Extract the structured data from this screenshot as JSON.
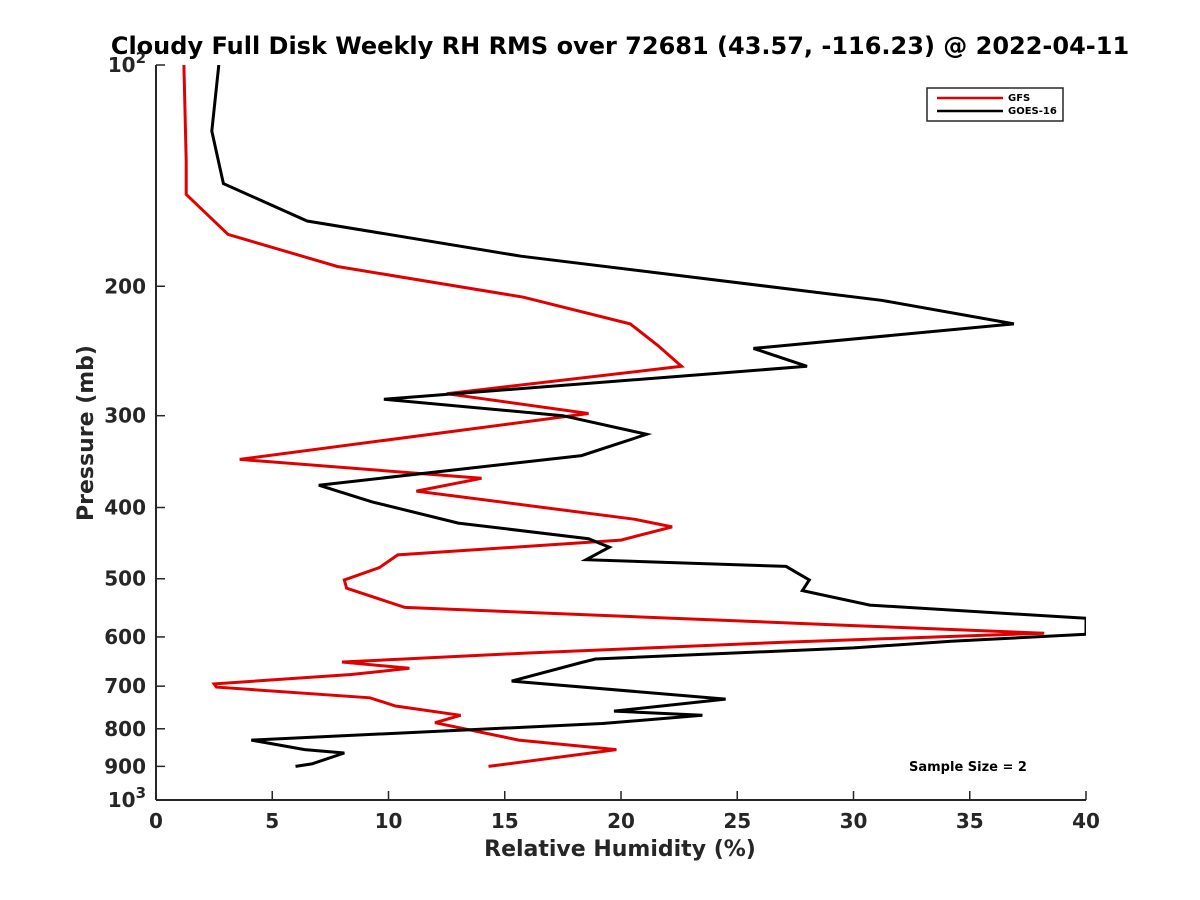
{
  "chart_data": {
    "type": "line",
    "title": "Cloudy Full Disk Weekly RH RMS over 72681 (43.57, -116.23) @ 2022-04-11",
    "xlabel": "Relative Humidity (%)",
    "ylabel": "Pressure (mb)",
    "xlim": [
      0,
      40
    ],
    "ylim": [
      100,
      1000
    ],
    "yscale": "log",
    "y_reversed": true,
    "grid": false,
    "legend_position": "top-right",
    "x_ticks": [
      0,
      5,
      10,
      15,
      20,
      25,
      30,
      35,
      40
    ],
    "y_ticks": [
      {
        "value": 100,
        "base": "10",
        "exp": "2"
      },
      {
        "value": 200,
        "label": "200"
      },
      {
        "value": 300,
        "label": "300"
      },
      {
        "value": 400,
        "label": "400"
      },
      {
        "value": 500,
        "label": "500"
      },
      {
        "value": 600,
        "label": "600"
      },
      {
        "value": 700,
        "label": "700"
      },
      {
        "value": 800,
        "label": "800"
      },
      {
        "value": 900,
        "label": "900"
      },
      {
        "value": 1000,
        "base": "10",
        "exp": "3"
      }
    ],
    "series": [
      {
        "name": "GFS",
        "color": "#e00000",
        "points": [
          [
            1.2,
            100
          ],
          [
            1.3,
            135
          ],
          [
            1.3,
            150
          ],
          [
            3.1,
            170
          ],
          [
            7.8,
            188
          ],
          [
            15.8,
            207
          ],
          [
            20.4,
            225
          ],
          [
            21.6,
            241
          ],
          [
            22.6,
            257
          ],
          [
            12.5,
            280
          ],
          [
            18.6,
            298
          ],
          [
            3.6,
            344
          ],
          [
            14.0,
            365
          ],
          [
            11.2,
            380
          ],
          [
            20.6,
            415
          ],
          [
            22.2,
            425
          ],
          [
            20.0,
            443
          ],
          [
            10.4,
            464
          ],
          [
            9.6,
            483
          ],
          [
            8.1,
            502
          ],
          [
            8.2,
            515
          ],
          [
            10.7,
            547
          ],
          [
            30.0,
            579
          ],
          [
            38.2,
            593
          ],
          [
            27.0,
            610
          ],
          [
            16.0,
            631
          ],
          [
            8.0,
            649
          ],
          [
            10.9,
            662
          ],
          [
            8.4,
            675
          ],
          [
            2.5,
            695
          ],
          [
            2.6,
            702
          ],
          [
            9.2,
            726
          ],
          [
            10.3,
            745
          ],
          [
            13.1,
            767
          ],
          [
            12.0,
            785
          ],
          [
            15.6,
            829
          ],
          [
            19.8,
            854
          ],
          [
            14.3,
            900
          ]
        ]
      },
      {
        "name": "GOES-16",
        "color": "#000000",
        "points": [
          [
            2.7,
            100
          ],
          [
            2.4,
            123
          ],
          [
            2.9,
            145
          ],
          [
            6.5,
            163
          ],
          [
            15.7,
            182
          ],
          [
            31.2,
            209
          ],
          [
            36.9,
            225
          ],
          [
            25.7,
            243
          ],
          [
            28.0,
            257
          ],
          [
            9.8,
            285
          ],
          [
            17.5,
            300
          ],
          [
            21.1,
            318
          ],
          [
            18.3,
            340
          ],
          [
            7.0,
            373
          ],
          [
            9.3,
            393
          ],
          [
            13.0,
            420
          ],
          [
            18.6,
            441
          ],
          [
            19.5,
            453
          ],
          [
            18.5,
            471
          ],
          [
            27.1,
            481
          ],
          [
            28.1,
            502
          ],
          [
            27.8,
            519
          ],
          [
            30.7,
            543
          ],
          [
            40.0,
            566
          ],
          [
            40.0,
            595
          ],
          [
            34.2,
            608
          ],
          [
            30.0,
            621
          ],
          [
            18.9,
            643
          ],
          [
            18.3,
            650
          ],
          [
            15.3,
            689
          ],
          [
            24.5,
            729
          ],
          [
            19.7,
            757
          ],
          [
            23.5,
            767
          ],
          [
            19.2,
            787
          ],
          [
            4.1,
            829
          ],
          [
            6.4,
            854
          ],
          [
            8.1,
            863
          ],
          [
            6.7,
            893
          ],
          [
            6.0,
            900
          ]
        ]
      }
    ],
    "annotation": "Sample Size = 2"
  }
}
